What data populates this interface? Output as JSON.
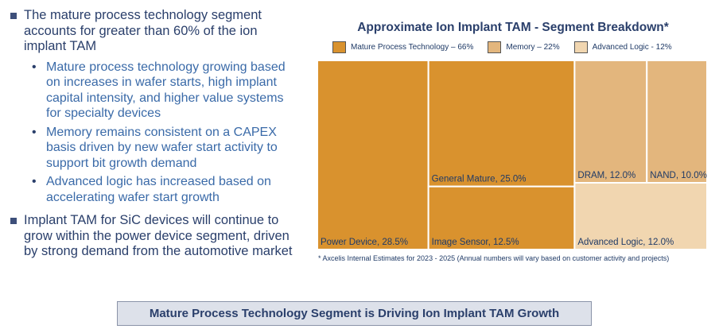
{
  "bullets": [
    {
      "text": "The mature process technology segment accounts for greater than 60% of the ion implant TAM",
      "sub": [
        "Mature process technology growing based on increases in wafer starts, high implant capital intensity, and higher value systems for specialty devices",
        "Memory remains consistent on a CAPEX basis driven by new wafer start activity to support bit growth demand",
        "Advanced logic has increased based on accelerating wafer start growth"
      ]
    },
    {
      "text": "Implant TAM for SiC devices will continue to grow within the power device segment, driven by strong demand from the automotive market",
      "sub": []
    }
  ],
  "chart_data": {
    "type": "treemap",
    "title": "Approximate Ion Implant TAM - Segment Breakdown*",
    "legend": [
      {
        "label": "Mature Process Technology – 66%",
        "color": "#d9922e"
      },
      {
        "label": "Memory – 22%",
        "color": "#e3b67d"
      },
      {
        "label": "Advanced Logic - 12%",
        "color": "#f1d6b0"
      }
    ],
    "segments": [
      {
        "label": "Power Device, 28.5%",
        "value": 28.5,
        "group": "Mature Process Technology"
      },
      {
        "label": "General Mature, 25.0%",
        "value": 25.0,
        "group": "Mature Process Technology"
      },
      {
        "label": "Image Sensor, 12.5%",
        "value": 12.5,
        "group": "Mature Process Technology"
      },
      {
        "label": "DRAM, 12.0%",
        "value": 12.0,
        "group": "Memory"
      },
      {
        "label": "NAND, 10.0%",
        "value": 10.0,
        "group": "Memory"
      },
      {
        "label": "Advanced Logic, 12.0%",
        "value": 12.0,
        "group": "Advanced Logic"
      }
    ],
    "colors": {
      "Mature Process Technology": "#d9922e",
      "Memory": "#e3b67d",
      "Advanced Logic": "#f1d6b0"
    },
    "footnote": "* Axcelis Internal Estimates for 2023 - 2025 (Annual numbers will vary based on customer activity and projects)"
  },
  "banner": "Mature Process Technology Segment is Driving Ion Implant TAM Growth"
}
